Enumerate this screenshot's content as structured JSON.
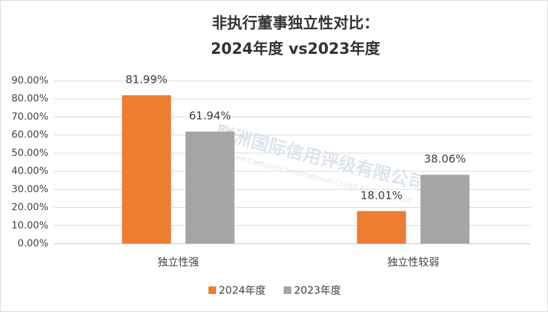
{
  "chart_data": {
    "type": "bar",
    "title": "非执行董事独立性对比：",
    "subtitle": "2024年度 vs2023年度",
    "categories": [
      "独立性强",
      "独立性较弱"
    ],
    "series": [
      {
        "name": "2024年度",
        "color": "#ed7d31",
        "values": [
          81.99,
          18.01
        ],
        "value_labels": [
          "81.99%",
          "18.01%"
        ]
      },
      {
        "name": "2023年度",
        "color": "#a5a5a5",
        "values": [
          61.94,
          38.06
        ],
        "value_labels": [
          "61.94%",
          "38.06%"
        ]
      }
    ],
    "ylim": [
      0,
      90
    ],
    "yticks": [
      {
        "value": 0,
        "label": "0.00%"
      },
      {
        "value": 10,
        "label": "10.00%"
      },
      {
        "value": 20,
        "label": "20.00%"
      },
      {
        "value": 30,
        "label": "30.00%"
      },
      {
        "value": 40,
        "label": "40.00%"
      },
      {
        "value": 50,
        "label": "50.00%"
      },
      {
        "value": 60,
        "label": "60.00%"
      },
      {
        "value": 70,
        "label": "70.00%"
      },
      {
        "value": 80,
        "label": "80.00%"
      },
      {
        "value": 90,
        "label": "90.00%"
      }
    ],
    "grid": true,
    "legend": "bottom",
    "watermark": {
      "text": "联洲国际信用评级有限公司",
      "subtext": "United Continent International Credit Rating Co.,Ltd"
    }
  }
}
